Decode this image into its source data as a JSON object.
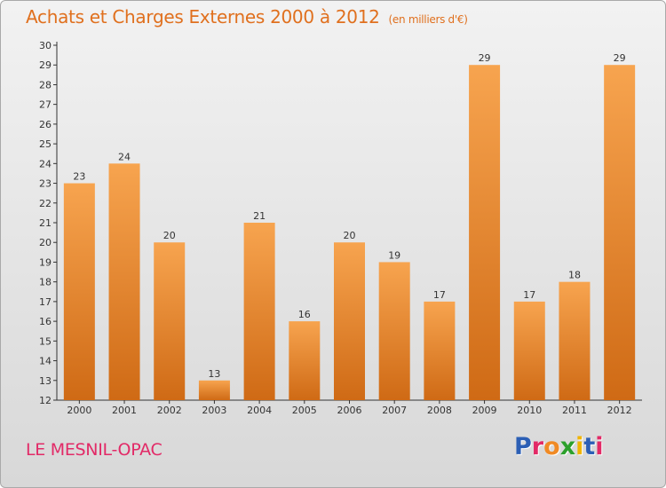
{
  "header": {
    "title": "Achats et Charges Externes 2000 à 2012",
    "subtitle": "(en milliers d'€)"
  },
  "footer": {
    "place": "LE MESNIL-OPAC",
    "logo_text": "Proxiti"
  },
  "colors": {
    "bar_top": "#f7a44f",
    "bar_bottom": "#cf6a15",
    "title": "#e0701e",
    "place": "#e22a67",
    "logo_letters": [
      "#2c5fb5",
      "#e22a67",
      "#f08a24",
      "#2ca02c",
      "#f0b400",
      "#2c5fb5",
      "#e22a67"
    ]
  },
  "chart_data": {
    "type": "bar",
    "categories": [
      "2000",
      "2001",
      "2002",
      "2003",
      "2004",
      "2005",
      "2006",
      "2007",
      "2008",
      "2009",
      "2010",
      "2011",
      "2012"
    ],
    "values": [
      23,
      24,
      20,
      13,
      21,
      16,
      20,
      19,
      17,
      29,
      17,
      18,
      29
    ],
    "ylim": [
      12,
      30
    ],
    "yticks": [
      12,
      13,
      14,
      15,
      16,
      17,
      18,
      19,
      20,
      21,
      22,
      23,
      24,
      25,
      26,
      27,
      28,
      29,
      30
    ],
    "grid": false,
    "data_labels": true
  }
}
